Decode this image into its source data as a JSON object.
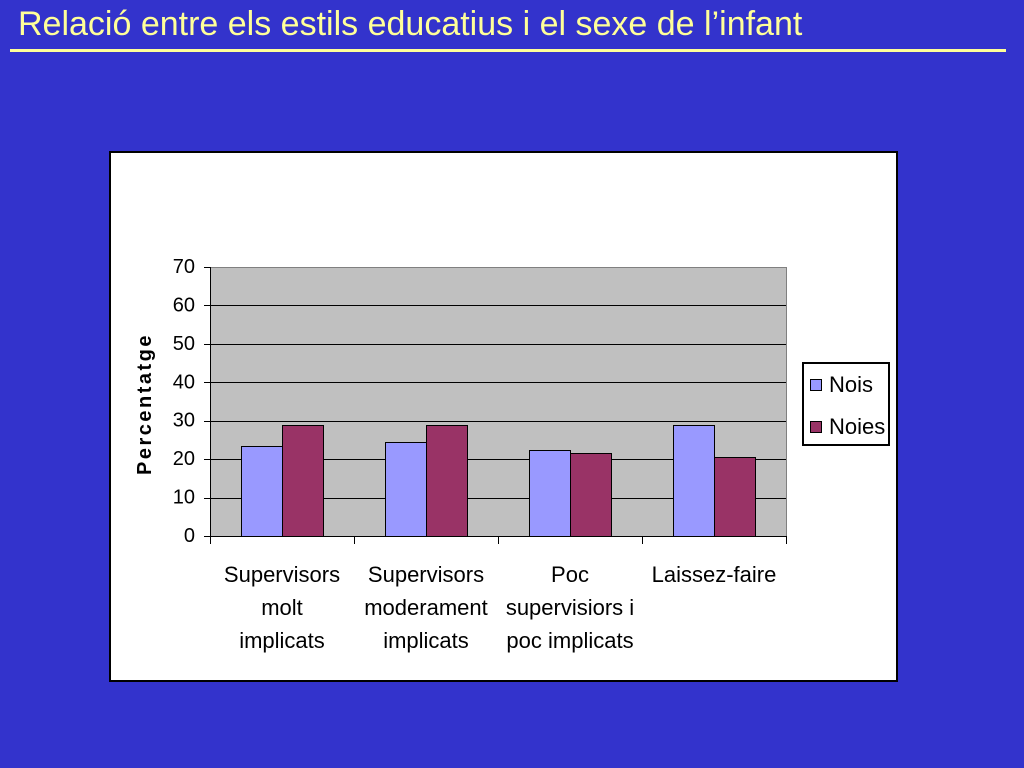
{
  "slide": {
    "title": "Relació entre els estils educatius i el sexe de l’infant"
  },
  "colors": {
    "background": "#3333CC",
    "title": "#FFFF99",
    "chart_background": "#FFFFFF",
    "plot_background": "#C0C0C0"
  },
  "chart_data": {
    "type": "bar",
    "categories": [
      "Supervisors\nmolt\nimplicats",
      "Supervisors\nmoderament\nimplicats",
      "Poc\nsupervisiors i\npoc implicats",
      "Laissez-faire"
    ],
    "series": [
      {
        "name": "Nois",
        "values": [
          23.5,
          24.5,
          22.5,
          29
        ],
        "color": "#9999FF"
      },
      {
        "name": "Noies",
        "values": [
          29,
          29,
          21.5,
          20.5
        ],
        "color": "#993366"
      }
    ],
    "ylabel": "Percentatge",
    "ylim": [
      0,
      70
    ],
    "yticks": [
      0,
      10,
      20,
      30,
      40,
      50,
      60,
      70
    ],
    "grid": true,
    "legend_position": "right"
  }
}
